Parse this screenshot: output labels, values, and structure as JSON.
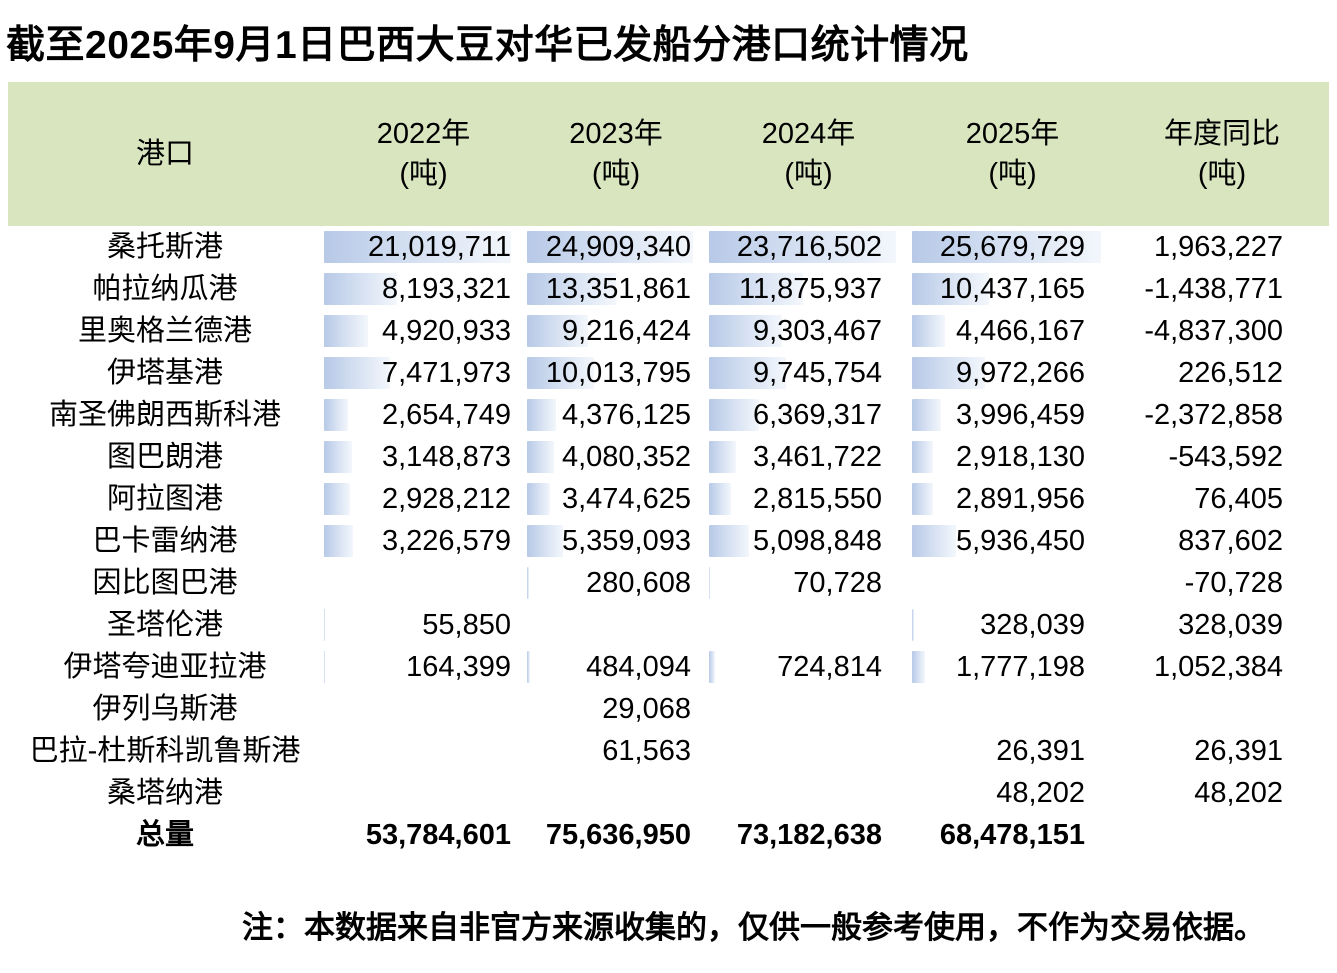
{
  "title": "截至2025年9月1日巴西大豆对华已发船分港口统计情况",
  "note": "注：本数据来自非官方来源收集的，仅供一般参考使用，不作为交易依据。",
  "colors": {
    "header_bg": "#d8e5bf",
    "bar_color": "#b7c9e7"
  },
  "table": {
    "columns": [
      {
        "label": "港口",
        "unit": ""
      },
      {
        "label": "2022年",
        "unit": "(吨)"
      },
      {
        "label": "2023年",
        "unit": "(吨)"
      },
      {
        "label": "2024年",
        "unit": "(吨)"
      },
      {
        "label": "2025年",
        "unit": "(吨)"
      },
      {
        "label": "年度同比",
        "unit": "(吨)"
      }
    ],
    "rows": [
      {
        "port": "桑托斯港",
        "values": [
          "21,019,711",
          "24,909,340",
          "23,716,502",
          "25,679,729",
          "1,963,227"
        ]
      },
      {
        "port": "帕拉纳瓜港",
        "values": [
          "8,193,321",
          "13,351,861",
          "11,875,937",
          "10,437,165",
          "-1,438,771"
        ]
      },
      {
        "port": "里奥格兰德港",
        "values": [
          "4,920,933",
          "9,216,424",
          "9,303,467",
          "4,466,167",
          "-4,837,300"
        ]
      },
      {
        "port": "伊塔基港",
        "values": [
          "7,471,973",
          "10,013,795",
          "9,745,754",
          "9,972,266",
          "226,512"
        ]
      },
      {
        "port": "南圣佛朗西斯科港",
        "values": [
          "2,654,749",
          "4,376,125",
          "6,369,317",
          "3,996,459",
          "-2,372,858"
        ]
      },
      {
        "port": "图巴朗港",
        "values": [
          "3,148,873",
          "4,080,352",
          "3,461,722",
          "2,918,130",
          "-543,592"
        ]
      },
      {
        "port": "阿拉图港",
        "values": [
          "2,928,212",
          "3,474,625",
          "2,815,550",
          "2,891,956",
          "76,405"
        ]
      },
      {
        "port": "巴卡雷纳港",
        "values": [
          "3,226,579",
          "5,359,093",
          "5,098,848",
          "5,936,450",
          "837,602"
        ]
      },
      {
        "port": "因比图巴港",
        "values": [
          "",
          "280,608",
          "70,728",
          "",
          "-70,728"
        ]
      },
      {
        "port": "圣塔伦港",
        "values": [
          "55,850",
          "",
          "",
          "328,039",
          "328,039"
        ]
      },
      {
        "port": "伊塔夸迪亚拉港",
        "values": [
          "164,399",
          "484,094",
          "724,814",
          "1,777,198",
          "1,052,384"
        ]
      },
      {
        "port": "伊列乌斯港",
        "values": [
          "",
          "29,068",
          "",
          "",
          ""
        ]
      },
      {
        "port": "巴拉-杜斯科凯鲁斯港",
        "values": [
          "",
          "61,563",
          "",
          "26,391",
          "26,391"
        ]
      },
      {
        "port": "桑塔纳港",
        "values": [
          "",
          "",
          "",
          "48,202",
          "48,202"
        ]
      }
    ],
    "total": {
      "port": "总量",
      "values": [
        "53,784,601",
        "75,636,950",
        "73,182,638",
        "68,478,151",
        ""
      ]
    }
  },
  "chart_data": {
    "type": "table",
    "title": "截至2025年9月1日巴西大豆对华已发船分港口统计情况",
    "columns": [
      "港口",
      "2022年(吨)",
      "2023年(吨)",
      "2024年(吨)",
      "2025年(吨)",
      "年度同比(吨)"
    ],
    "rows": [
      [
        "桑托斯港",
        21019711,
        24909340,
        23716502,
        25679729,
        1963227
      ],
      [
        "帕拉纳瓜港",
        8193321,
        13351861,
        11875937,
        10437165,
        -1438771
      ],
      [
        "里奥格兰德港",
        4920933,
        9216424,
        9303467,
        4466167,
        -4837300
      ],
      [
        "伊塔基港",
        7471973,
        10013795,
        9745754,
        9972266,
        226512
      ],
      [
        "南圣佛朗西斯科港",
        2654749,
        4376125,
        6369317,
        3996459,
        -2372858
      ],
      [
        "图巴朗港",
        3148873,
        4080352,
        3461722,
        2918130,
        -543592
      ],
      [
        "阿拉图港",
        2928212,
        3474625,
        2815550,
        2891956,
        76405
      ],
      [
        "巴卡雷纳港",
        3226579,
        5359093,
        5098848,
        5936450,
        837602
      ],
      [
        "因比图巴港",
        null,
        280608,
        70728,
        null,
        -70728
      ],
      [
        "圣塔伦港",
        55850,
        null,
        null,
        328039,
        328039
      ],
      [
        "伊塔夸迪亚拉港",
        164399,
        484094,
        724814,
        1777198,
        1052384
      ],
      [
        "伊列乌斯港",
        null,
        29068,
        null,
        null,
        null
      ],
      [
        "巴拉-杜斯科凯鲁斯港",
        null,
        61563,
        null,
        26391,
        26391
      ],
      [
        "桑塔纳港",
        null,
        null,
        null,
        48202,
        48202
      ]
    ],
    "total": [
      "总量",
      53784601,
      75636950,
      73182638,
      68478151,
      null
    ],
    "layout": {
      "data_bars": "gradient blue, per-year-column, scaled to column max",
      "note": "注：本数据来自非官方来源收集的，仅供一般参考使用，不作为交易依据。"
    }
  }
}
